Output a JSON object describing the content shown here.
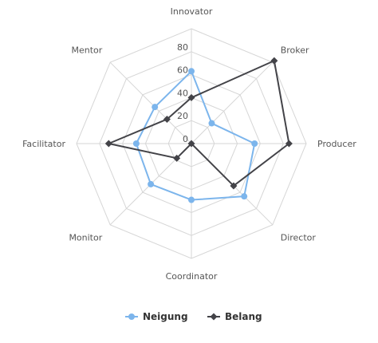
{
  "chart_data": {
    "type": "radar",
    "categories": [
      "Innovator",
      "Broker",
      "Producer",
      "Director",
      "Coordinator",
      "Monitor",
      "Facilitator",
      "Mentor"
    ],
    "rlim": [
      0,
      100
    ],
    "ticks": [
      0,
      20,
      40,
      60,
      80
    ],
    "tick_labels": [
      "0",
      "20",
      "40",
      "60",
      "80"
    ],
    "grid": true,
    "legend_position": "bottom",
    "series": [
      {
        "name": "Neigung",
        "color": "#7cb5ec",
        "marker": "circle",
        "values": [
          63,
          25,
          55,
          65,
          49,
          50,
          48,
          45
        ]
      },
      {
        "name": "Belang",
        "color": "#434348",
        "marker": "diamond",
        "values": [
          40,
          102,
          85,
          52,
          0,
          18,
          72,
          30
        ]
      }
    ]
  }
}
